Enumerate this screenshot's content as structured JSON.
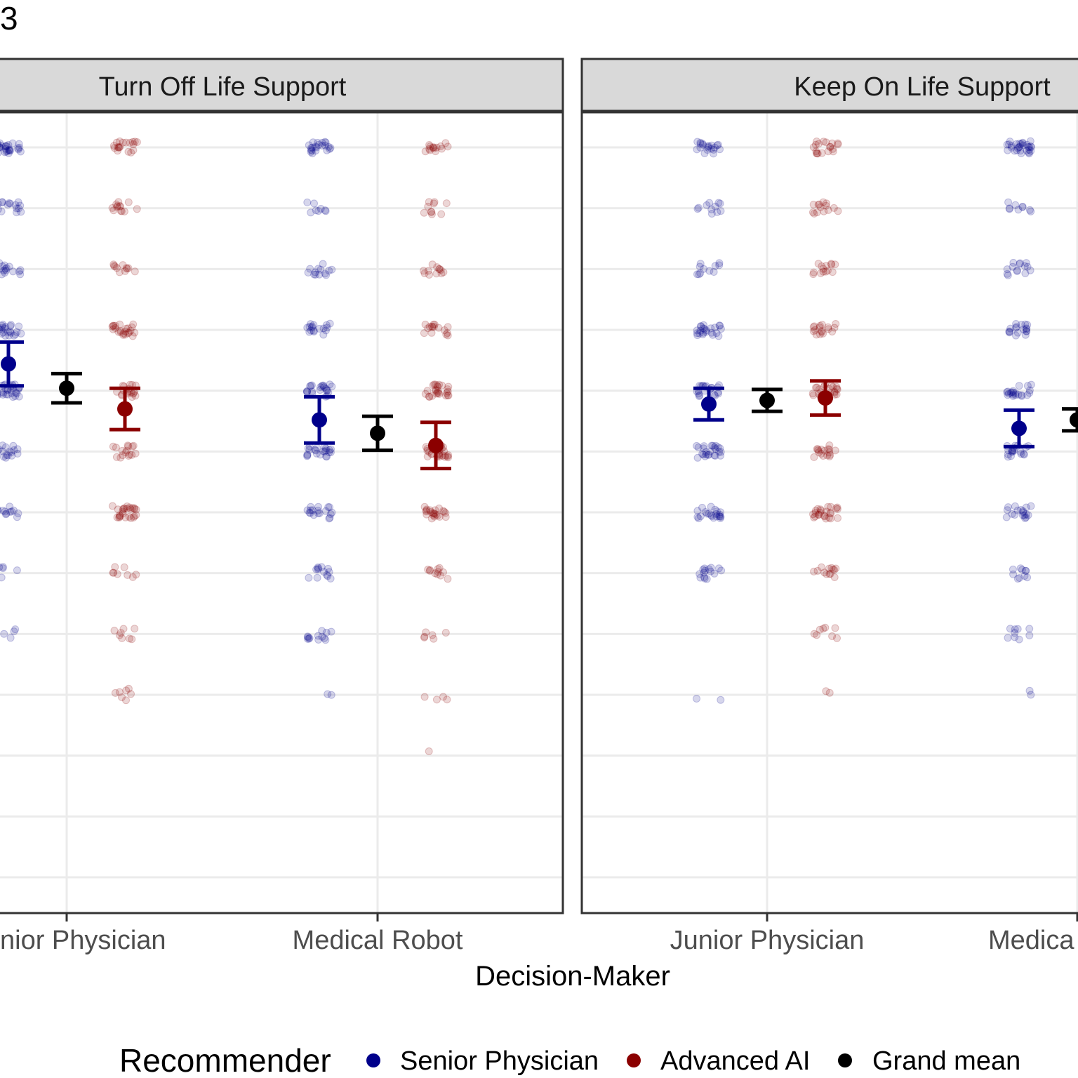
{
  "figure_label": "3",
  "chart_data": {
    "type": "scatter",
    "xlabel": "Decision-Maker",
    "ylabel": "",
    "ylim": [
      0,
      6
    ],
    "categories": [
      "Junior Physician",
      "Medical Robot"
    ],
    "visible_tick_labels": [
      "nior Physician",
      "Medical Robot",
      "Junior Physician",
      "Medica"
    ],
    "grid": true,
    "legend": {
      "title": "Recommender",
      "position": "bottom",
      "entries": [
        {
          "name": "Senior Physician",
          "color": "#00008b"
        },
        {
          "name": "Advanced AI",
          "color": "#8b0000"
        },
        {
          "name": "Grand mean",
          "color": "#000000"
        }
      ]
    },
    "colors": {
      "senior": "#00008b",
      "ai": "#8b0000",
      "grand": "#000000",
      "strip_bg": "#d9d9d9"
    },
    "panels": [
      {
        "title": "Turn Off Life Support",
        "groups": [
          {
            "category": "Junior Physician",
            "senior": {
              "mean": 4.22,
              "lower": 4.04,
              "upper": 4.4
            },
            "grand": {
              "mean": 4.02,
              "lower": 3.9,
              "upper": 4.14
            },
            "ai": {
              "mean": 3.85,
              "lower": 3.68,
              "upper": 4.02
            }
          },
          {
            "category": "Medical Robot",
            "senior": {
              "mean": 3.76,
              "lower": 3.57,
              "upper": 3.95
            },
            "grand": {
              "mean": 3.65,
              "lower": 3.51,
              "upper": 3.79
            },
            "ai": {
              "mean": 3.55,
              "lower": 3.36,
              "upper": 3.74
            }
          }
        ]
      },
      {
        "title": "Keep On Life Support",
        "groups": [
          {
            "category": "Junior Physician",
            "senior": {
              "mean": 3.89,
              "lower": 3.76,
              "upper": 4.02
            },
            "grand": {
              "mean": 3.92,
              "lower": 3.83,
              "upper": 4.01
            },
            "ai": {
              "mean": 3.94,
              "lower": 3.8,
              "upper": 4.08
            }
          },
          {
            "category": "Medical Robot",
            "senior": {
              "mean": 3.69,
              "lower": 3.54,
              "upper": 3.84
            },
            "grand": {
              "mean": 3.76,
              "lower": 3.67,
              "upper": 3.85
            },
            "ai": {
              "mean": null,
              "lower": null,
              "upper": null
            }
          }
        ]
      }
    ]
  }
}
